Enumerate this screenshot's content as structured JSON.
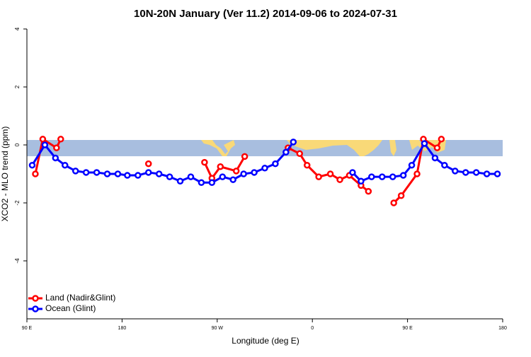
{
  "chart_data": {
    "type": "line",
    "title": "10N-20N January (Ver 11.2)   2014-09-06 to 2024-07-31",
    "x_label": "Longitude (deg E)",
    "y_label": "XCO2 - MLO trend (ppm)",
    "xlim": [
      90,
      540
    ],
    "xticks": [
      {
        "value": 90,
        "label": "90 E"
      },
      {
        "value": 180,
        "label": "180"
      },
      {
        "value": 270,
        "label": "90 W"
      },
      {
        "value": 360,
        "label": "0"
      },
      {
        "value": 450,
        "label": "90 E"
      },
      {
        "value": 540,
        "label": "180"
      }
    ],
    "ylim": [
      -6,
      4
    ],
    "yticks": [
      -4,
      -2,
      0,
      2,
      4
    ],
    "legend": "bottom-left",
    "series": [
      {
        "name": "Land (Nadir&Glint)",
        "color": "#ff0000",
        "x": [
          98,
          105,
          118,
          122,
          150,
          205,
          230,
          258,
          265,
          273,
          288,
          296,
          310,
          337,
          348,
          355,
          366,
          377,
          386,
          395,
          406,
          413,
          425,
          437,
          444,
          459,
          465,
          478,
          482
        ],
        "values": [
          -1.0,
          0.2,
          -0.1,
          0.2,
          null,
          -0.65,
          null,
          -0.6,
          -1.15,
          -0.75,
          -0.9,
          -0.4,
          null,
          -0.1,
          -0.3,
          -0.7,
          -1.1,
          -1.0,
          -1.2,
          -1.05,
          -1.4,
          -1.6,
          null,
          -2.0,
          -1.75,
          -1.0,
          0.2,
          -0.1,
          0.2
        ]
      },
      {
        "name": "Ocean (Glint)",
        "color": "#0000ff",
        "x": [
          95,
          107,
          117,
          126,
          136,
          146,
          156,
          166,
          176,
          185,
          195,
          205,
          215,
          225,
          235,
          245,
          255,
          265,
          275,
          285,
          295,
          305,
          315,
          325,
          335,
          342,
          370,
          398,
          406,
          416,
          426,
          436,
          446,
          454,
          466,
          476,
          485,
          495,
          505,
          515,
          525,
          535
        ],
        "values": [
          -0.7,
          0.0,
          -0.45,
          -0.7,
          -0.9,
          -0.95,
          -0.95,
          -1.0,
          -1.0,
          -1.05,
          -1.05,
          -0.95,
          -1.0,
          -1.1,
          -1.25,
          -1.1,
          -1.3,
          -1.3,
          -1.1,
          -1.2,
          -1.0,
          -0.95,
          -0.8,
          -0.65,
          -0.25,
          0.1,
          null,
          -0.95,
          -1.25,
          -1.1,
          -1.1,
          -1.1,
          -1.05,
          -0.7,
          0.05,
          -0.45,
          -0.7,
          -0.9,
          -0.95,
          -0.95,
          -1.0,
          -1.0
        ]
      }
    ]
  }
}
